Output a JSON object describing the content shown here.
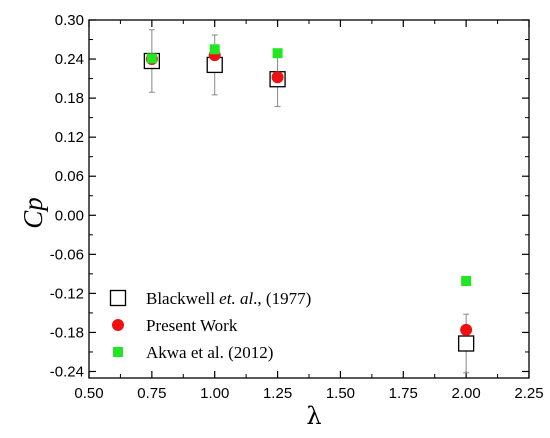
{
  "chart_data": {
    "type": "scatter",
    "xlabel": "λ",
    "ylabel": "Cp",
    "xlim": [
      0.5,
      2.25
    ],
    "ylim": [
      -0.25,
      0.3
    ],
    "xticks": [
      "0.50",
      "0.75",
      "1.00",
      "1.25",
      "1.50",
      "1.75",
      "2.00",
      "2.25"
    ],
    "yticks": [
      "-0.24",
      "-0.18",
      "-0.12",
      "-0.06",
      "0.00",
      "0.06",
      "0.12",
      "0.18",
      "0.24",
      "0.30"
    ],
    "grid": false,
    "legend_position": "bottom-left",
    "series": [
      {
        "name_parts": [
          "Blackwell ",
          "et. al",
          "., (1977)"
        ],
        "marker": "open-square",
        "color": "#000000",
        "x": [
          0.75,
          1.0,
          1.25,
          2.0
        ],
        "y": [
          0.237,
          0.231,
          0.209,
          -0.197
        ],
        "error": [
          0.048,
          0.046,
          0.042,
          0.045
        ]
      },
      {
        "name": "Present Work",
        "marker": "circle",
        "color": "#ee1111",
        "x": [
          0.75,
          1.0,
          1.25,
          2.0
        ],
        "y": [
          0.24,
          0.246,
          0.212,
          -0.176
        ]
      },
      {
        "name": "Akwa et al. (2012)",
        "marker": "filled-square",
        "color": "#22e622",
        "x": [
          0.75,
          1.0,
          1.25,
          2.0
        ],
        "y": [
          0.241,
          0.255,
          0.249,
          -0.101
        ]
      }
    ]
  }
}
